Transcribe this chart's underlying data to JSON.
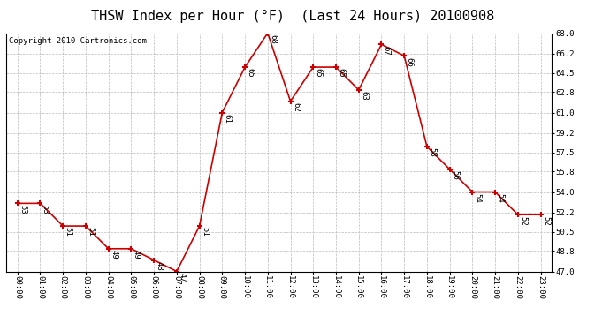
{
  "title": "THSW Index per Hour (°F)  (Last 24 Hours) 20100908",
  "copyright": "Copyright 2010 Cartronics.com",
  "hours": [
    "00:00",
    "01:00",
    "02:00",
    "03:00",
    "04:00",
    "05:00",
    "06:00",
    "07:00",
    "08:00",
    "09:00",
    "10:00",
    "11:00",
    "12:00",
    "13:00",
    "14:00",
    "15:00",
    "16:00",
    "17:00",
    "18:00",
    "19:00",
    "20:00",
    "21:00",
    "22:00",
    "23:00"
  ],
  "values": [
    53,
    53,
    51,
    51,
    49,
    49,
    48,
    47,
    51,
    61,
    65,
    68,
    62,
    65,
    65,
    63,
    67,
    66,
    58,
    56,
    54,
    54,
    52,
    52
  ],
  "ylim_min": 47.0,
  "ylim_max": 68.0,
  "yticks": [
    47.0,
    48.8,
    50.5,
    52.2,
    54.0,
    55.8,
    57.5,
    59.2,
    61.0,
    62.8,
    64.5,
    66.2,
    68.0
  ],
  "line_color": "#cc0000",
  "marker_color": "#cc0000",
  "bg_color": "#ffffff",
  "grid_color": "#bbbbbb",
  "title_fontsize": 11,
  "copyright_fontsize": 6.5,
  "label_fontsize": 6.5,
  "tick_fontsize": 6.5
}
